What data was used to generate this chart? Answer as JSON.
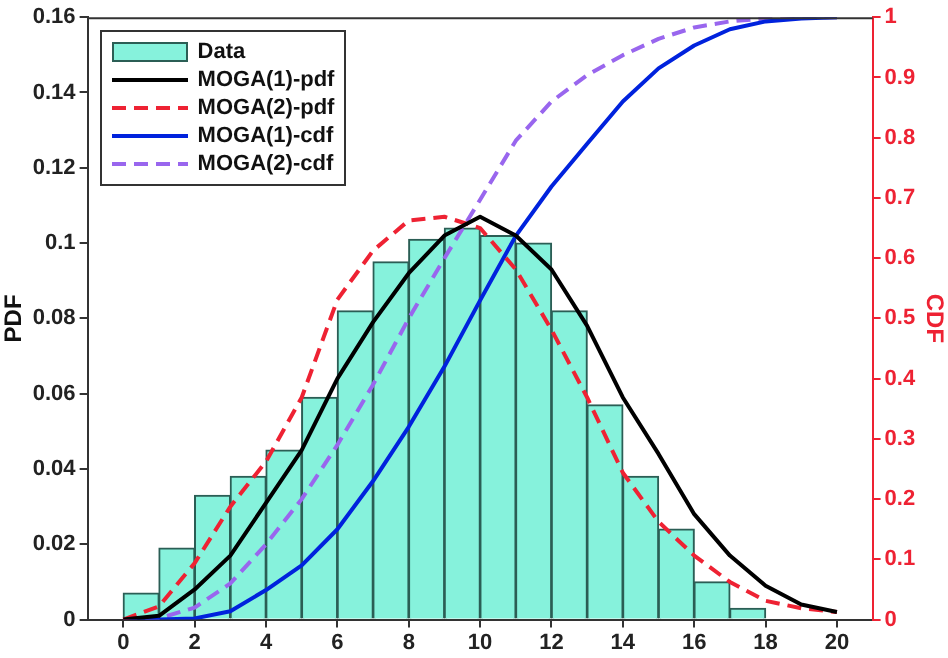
{
  "chart_data": {
    "type": "histogram",
    "ylabel": "PDF",
    "y2label": "CDF",
    "legend": "top left",
    "grid": false,
    "series": [
      {
        "name": "Data",
        "color": "#86f2dc",
        "bins": [
          0,
          1,
          2,
          3,
          4,
          5,
          6,
          7,
          8,
          9,
          10,
          11,
          12,
          13,
          14,
          15,
          16,
          17,
          18
        ],
        "values": [
          0.007,
          0.019,
          0.033,
          0.038,
          0.045,
          0.059,
          0.082,
          0.095,
          0.101,
          0.104,
          0.102,
          0.1,
          0.082,
          0.057,
          0.038,
          0.024,
          0.01,
          0.003
        ]
      },
      {
        "name": "MOGA(1)-pdf",
        "type": "line",
        "color": "#000000",
        "line_style": "solid",
        "x": [
          0,
          1,
          2,
          3,
          4,
          5,
          6,
          7,
          8,
          9,
          10,
          11,
          12,
          13,
          14,
          15,
          16,
          17,
          18,
          19,
          20
        ],
        "values": [
          0,
          0.001,
          0.008,
          0.017,
          0.031,
          0.045,
          0.064,
          0.079,
          0.092,
          0.102,
          0.107,
          0.102,
          0.093,
          0.078,
          0.059,
          0.044,
          0.028,
          0.017,
          0.009,
          0.004,
          0.002
        ]
      },
      {
        "name": "MOGA(2)-pdf",
        "type": "line",
        "color": "#ee2233",
        "line_style": "dashed",
        "x": [
          0,
          1,
          2,
          3,
          4,
          5,
          6,
          7,
          8,
          9,
          10,
          11,
          12,
          13,
          14,
          15,
          16,
          17,
          18,
          19,
          20
        ],
        "values": [
          0,
          0.0035,
          0.015,
          0.03,
          0.042,
          0.059,
          0.085,
          0.098,
          0.106,
          0.107,
          0.104,
          0.093,
          0.077,
          0.059,
          0.039,
          0.026,
          0.017,
          0.01,
          0.005,
          0.003,
          0.002
        ]
      },
      {
        "name": "MOGA(1)-cdf",
        "type": "line",
        "axis": "y2",
        "color": "#0022dd",
        "line_style": "solid",
        "x": [
          0,
          1,
          2,
          3,
          4,
          5,
          6,
          7,
          8,
          9,
          10,
          11,
          12,
          13,
          14,
          15,
          16,
          17,
          18,
          19,
          20
        ],
        "values": [
          0,
          0,
          0.002,
          0.014,
          0.049,
          0.09,
          0.15,
          0.23,
          0.32,
          0.42,
          0.53,
          0.637,
          0.719,
          0.79,
          0.86,
          0.915,
          0.953,
          0.98,
          0.993,
          0.998,
          1
        ]
      },
      {
        "name": "MOGA(2)-cdf",
        "type": "line",
        "axis": "y2",
        "color": "#9966ee",
        "line_style": "dashed",
        "x": [
          0,
          1,
          2,
          3,
          4,
          5,
          6,
          7,
          8,
          9,
          10,
          11,
          12,
          13,
          14,
          15,
          16,
          17,
          18,
          19,
          20
        ],
        "values": [
          0,
          0.002,
          0.02,
          0.06,
          0.125,
          0.2,
          0.29,
          0.39,
          0.5,
          0.6,
          0.697,
          0.795,
          0.86,
          0.904,
          0.937,
          0.964,
          0.983,
          0.993,
          0.998,
          1,
          1
        ]
      }
    ],
    "xlim": [
      -1,
      21
    ],
    "xticks": [
      0,
      2,
      4,
      6,
      8,
      10,
      12,
      14,
      16,
      18,
      20
    ],
    "ylim": [
      0,
      0.16
    ],
    "yticks": [
      0,
      0.02,
      0.04,
      0.06,
      0.08,
      0.1,
      0.12,
      0.14,
      0.16
    ],
    "y2lim": [
      0,
      1
    ],
    "y2ticks": [
      0,
      0.1,
      0.2,
      0.3,
      0.4,
      0.5,
      0.6,
      0.7,
      0.8,
      0.9,
      1
    ]
  }
}
